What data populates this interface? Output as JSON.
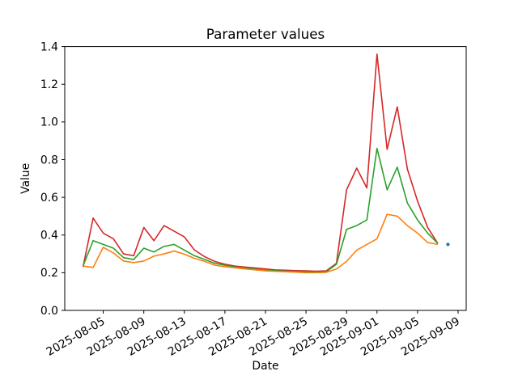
{
  "figure": {
    "background": "#ffffff"
  },
  "chart_data": {
    "type": "line",
    "title": "Parameter values",
    "xlabel": "Date",
    "ylabel": "Value",
    "grid": false,
    "legend": "none",
    "ylim": [
      0,
      1.4
    ],
    "x_view_days": [
      -1.8,
      37.8
    ],
    "start_date": "2025-08-03",
    "y_ticks": [
      "0.0",
      "0.2",
      "0.4",
      "0.6",
      "0.8",
      "1.0",
      "1.2",
      "1.4"
    ],
    "x_ticks": [
      {
        "label": "2025-08-05",
        "day": 2
      },
      {
        "label": "2025-08-09",
        "day": 6
      },
      {
        "label": "2025-08-13",
        "day": 10
      },
      {
        "label": "2025-08-17",
        "day": 14
      },
      {
        "label": "2025-08-21",
        "day": 18
      },
      {
        "label": "2025-08-25",
        "day": 22
      },
      {
        "label": "2025-08-29",
        "day": 26
      },
      {
        "label": "2025-09-01",
        "day": 29
      },
      {
        "label": "2025-09-05",
        "day": 33
      },
      {
        "label": "2025-09-09",
        "day": 37
      }
    ],
    "dates": [
      "2025-08-03",
      "2025-08-04",
      "2025-08-05",
      "2025-08-06",
      "2025-08-07",
      "2025-08-08",
      "2025-08-09",
      "2025-08-10",
      "2025-08-11",
      "2025-08-12",
      "2025-08-13",
      "2025-08-14",
      "2025-08-15",
      "2025-08-16",
      "2025-08-17",
      "2025-08-18",
      "2025-08-19",
      "2025-08-20",
      "2025-08-21",
      "2025-08-22",
      "2025-08-23",
      "2025-08-24",
      "2025-08-25",
      "2025-08-26",
      "2025-08-27",
      "2025-08-28",
      "2025-08-29",
      "2025-08-30",
      "2025-08-31",
      "2025-09-01",
      "2025-09-02",
      "2025-09-03",
      "2025-09-04",
      "2025-09-05",
      "2025-09-06",
      "2025-09-07"
    ],
    "series": [
      {
        "id": "series-red",
        "color": "#d62728",
        "values": [
          0.23,
          0.49,
          0.41,
          0.38,
          0.3,
          0.29,
          0.44,
          0.37,
          0.45,
          0.42,
          0.39,
          0.32,
          0.285,
          0.26,
          0.245,
          0.235,
          0.23,
          0.225,
          0.22,
          0.215,
          0.213,
          0.211,
          0.21,
          0.208,
          0.21,
          0.25,
          0.64,
          0.755,
          0.65,
          1.36,
          0.855,
          1.08,
          0.75,
          0.58,
          0.44,
          0.355
        ]
      },
      {
        "id": "series-green",
        "color": "#2ca02c",
        "values": [
          0.235,
          0.37,
          0.35,
          0.33,
          0.28,
          0.27,
          0.33,
          0.31,
          0.34,
          0.35,
          0.32,
          0.29,
          0.27,
          0.25,
          0.24,
          0.23,
          0.225,
          0.218,
          0.213,
          0.21,
          0.208,
          0.206,
          0.205,
          0.203,
          0.205,
          0.245,
          0.43,
          0.45,
          0.48,
          0.86,
          0.64,
          0.76,
          0.57,
          0.48,
          0.41,
          0.355
        ]
      },
      {
        "id": "series-orange",
        "color": "#ff7f0e",
        "values": [
          0.235,
          0.228,
          0.335,
          0.305,
          0.262,
          0.254,
          0.262,
          0.288,
          0.3,
          0.315,
          0.298,
          0.276,
          0.26,
          0.24,
          0.232,
          0.226,
          0.22,
          0.215,
          0.21,
          0.207,
          0.205,
          0.203,
          0.2,
          0.2,
          0.202,
          0.22,
          0.26,
          0.32,
          0.35,
          0.38,
          0.51,
          0.5,
          0.45,
          0.41,
          0.36,
          0.35
        ]
      }
    ],
    "point_series": {
      "id": "series-blue",
      "color": "#1f77b4",
      "date": "2025-09-08",
      "day": 36,
      "value": 0.35
    }
  }
}
